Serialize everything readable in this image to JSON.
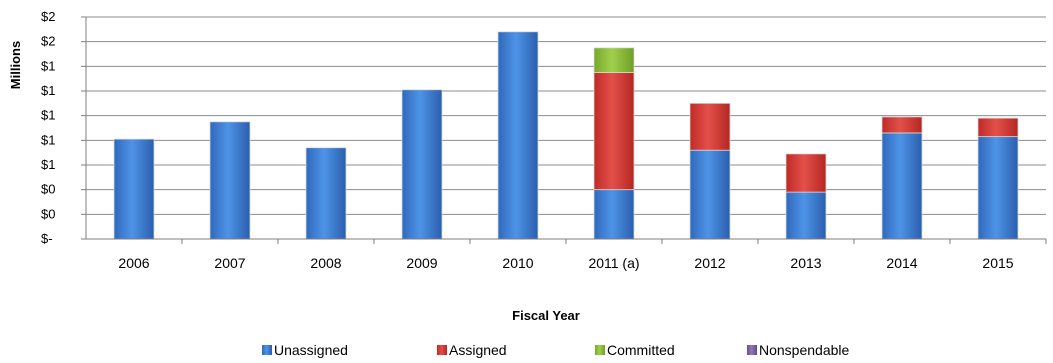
{
  "chart_data": {
    "type": "bar",
    "stacked": true,
    "title": "",
    "xlabel": "Fiscal Year",
    "ylabel": "Millions",
    "categories": [
      "2006",
      "2007",
      "2008",
      "2009",
      "2010",
      "2011 (a)",
      "2012",
      "2013",
      "2014",
      "2015"
    ],
    "y_tick_labels": [
      "$-",
      "$0",
      "$0",
      "$1",
      "$1",
      "$1",
      "$1",
      "$1",
      "$2",
      "$2"
    ],
    "ylim": [
      0,
      1.8
    ],
    "grid": true,
    "legend_position": "bottom",
    "series": [
      {
        "name": "Unassigned",
        "color": "#3B7DD8",
        "values": [
          0.81,
          0.95,
          0.74,
          1.21,
          1.68,
          0.4,
          0.72,
          0.38,
          0.86,
          0.83
        ]
      },
      {
        "name": "Assigned",
        "color": "#D93A35",
        "values": [
          0,
          0,
          0,
          0,
          0,
          0.95,
          0.38,
          0.31,
          0.13,
          0.15
        ]
      },
      {
        "name": "Committed",
        "color": "#8CBF3A",
        "values": [
          0,
          0,
          0,
          0,
          0,
          0.2,
          0,
          0,
          0,
          0
        ]
      },
      {
        "name": "Nonspendable",
        "color": "#8064A2",
        "values": [
          0,
          0,
          0,
          0,
          0,
          0,
          0,
          0,
          0,
          0
        ]
      }
    ]
  }
}
